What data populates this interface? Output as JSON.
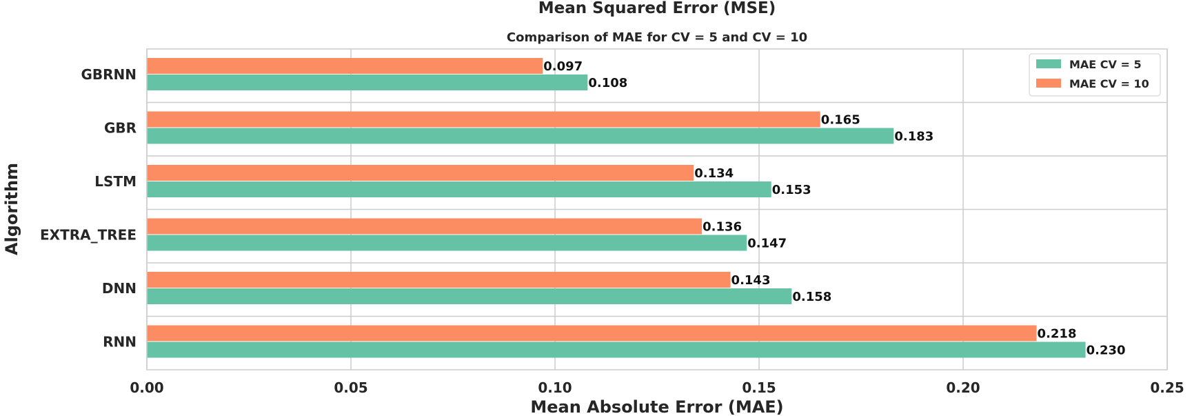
{
  "chart_data": {
    "type": "bar",
    "orientation": "horizontal",
    "title": "Mean Squared Error (MSE)",
    "subtitle": "Comparison of MAE for CV = 5 and CV = 10",
    "xlabel": "Mean Absolute Error (MAE)",
    "ylabel": "Algorithm",
    "xlim": [
      0,
      0.25
    ],
    "xticks": [
      "0.00",
      "0.05",
      "0.10",
      "0.15",
      "0.20",
      "0.25"
    ],
    "xtick_values": [
      0,
      0.05,
      0.1,
      0.15,
      0.2,
      0.25
    ],
    "grid": true,
    "legend_position": "top-right",
    "categories": [
      "GBRNN",
      "GBR",
      "LSTM",
      "EXTRA_TREE",
      "DNN",
      "RNN"
    ],
    "series": [
      {
        "name": "MAE CV = 5",
        "color": "#66c2a5",
        "values": [
          0.108,
          0.183,
          0.153,
          0.147,
          0.158,
          0.23
        ],
        "labels": [
          "0.108",
          "0.183",
          "0.153",
          "0.147",
          "0.158",
          "0.230"
        ]
      },
      {
        "name": "MAE CV = 10",
        "color": "#fc8d62",
        "values": [
          0.097,
          0.165,
          0.134,
          0.136,
          0.143,
          0.218
        ],
        "labels": [
          "0.097",
          "0.165",
          "0.134",
          "0.136",
          "0.143",
          "0.218"
        ]
      }
    ]
  }
}
